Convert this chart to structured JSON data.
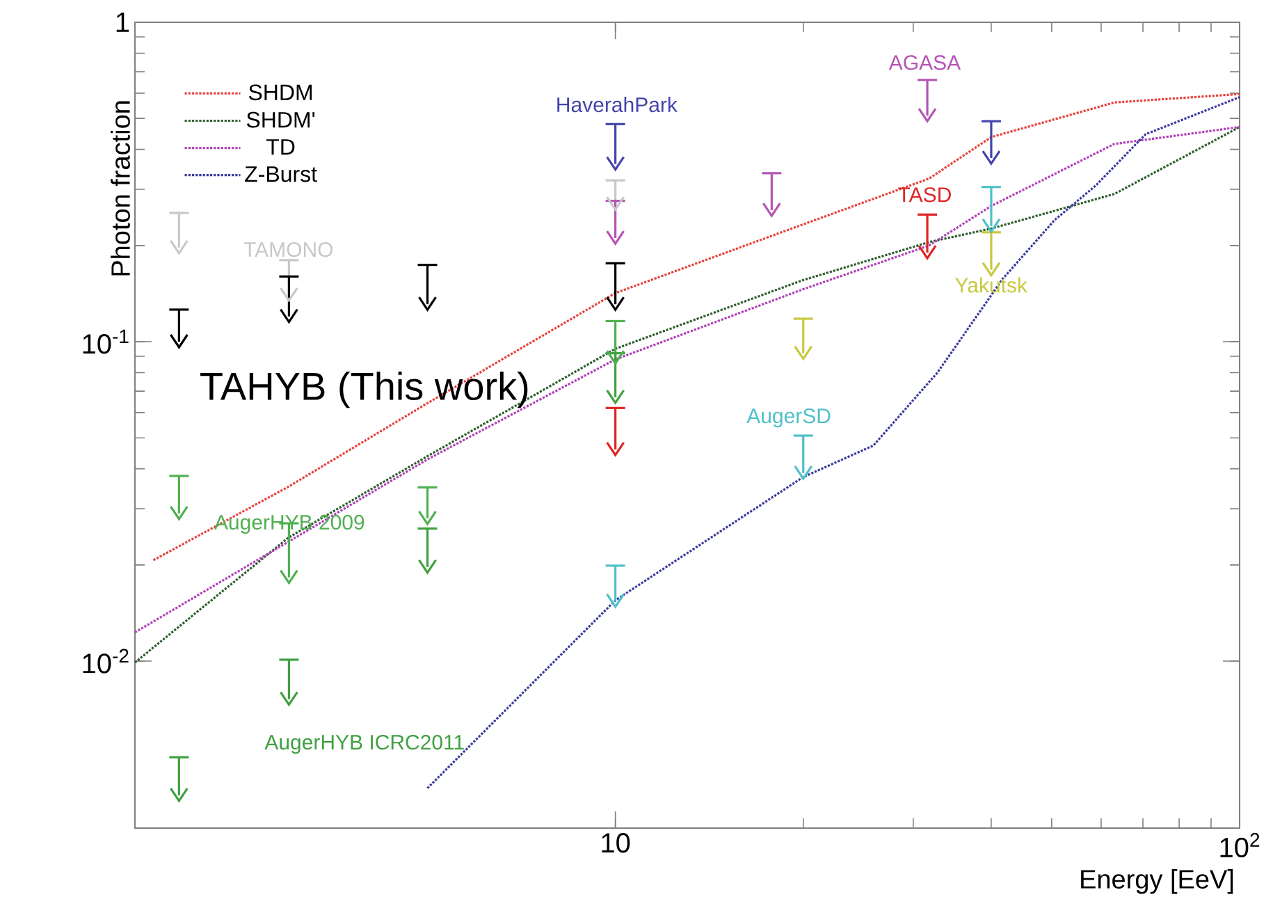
{
  "chart_data": {
    "type": "line",
    "xlabel": "Energy [EeV]",
    "ylabel": "Photon fraction",
    "log": "xy",
    "line_style": "dotted",
    "legend": "top left",
    "xlim": [
      1.7,
      100
    ],
    "ylim": [
      0.003,
      1
    ],
    "xticks": [
      10,
      {
        "value": 100,
        "label": "10$^{2}$"
      }
    ],
    "yticks": [
      {
        "value": 0.01,
        "label": "10$^{-2}$"
      },
      {
        "value": 0.1,
        "label": "10$^{-1}$"
      },
      1
    ],
    "series": [
      {
        "name": "SHDM",
        "color": "#e8423a",
        "x": [
          1.82,
          2.99,
          5.02,
          10,
          20,
          31.8,
          40,
          63,
          100
        ],
        "values": [
          0.0207,
          0.0351,
          0.0645,
          0.142,
          0.233,
          0.324,
          0.437,
          0.561,
          0.596
        ]
      },
      {
        "name": "SHDM'",
        "color": "#2e5e2e",
        "x": [
          1.7,
          2.99,
          5.02,
          10,
          20,
          31.8,
          40,
          63,
          100
        ],
        "values": [
          0.0099,
          0.0243,
          0.044,
          0.095,
          0.156,
          0.205,
          0.226,
          0.29,
          0.47
        ]
      },
      {
        "name": "TD",
        "color": "#b040b8",
        "x": [
          1.7,
          2.99,
          5.02,
          10,
          20,
          31.8,
          40,
          63,
          100
        ],
        "values": [
          0.0123,
          0.0236,
          0.043,
          0.088,
          0.146,
          0.2,
          0.266,
          0.416,
          0.47
        ]
      },
      {
        "name": "Z-Burst",
        "color": "#3a3aa0",
        "x": [
          5,
          10,
          20,
          25.9,
          32.8,
          41.7,
          50.5,
          58.8,
          70.7,
          100
        ],
        "values": [
          0.004,
          0.0155,
          0.0377,
          0.0473,
          0.08,
          0.157,
          0.24,
          0.308,
          0.446,
          0.583
        ]
      },
      {
        "type": "scatter",
        "name": "TAMONO",
        "color": "#c8c8c8",
        "x": [
          2,
          3,
          5,
          10
        ],
        "values": [
          0.197,
          0.14,
          null,
          0.27
        ],
        "errors": [
          [
            0.197,
            0.253
          ],
          [
            0.14,
            0.18
          ],
          null,
          [
            0.27,
            0.32
          ]
        ]
      },
      {
        "type": "scatter",
        "name": "TAHYB (This work)",
        "color": "#000000",
        "x": [
          2,
          3,
          5,
          10
        ],
        "values": [
          0.1,
          0.12,
          0.131,
          0.131
        ],
        "errors": [
          [
            0.1,
            0.126
          ],
          [
            0.12,
            0.16
          ],
          [
            0.131,
            0.174
          ],
          [
            0.131,
            0.176
          ]
        ]
      },
      {
        "type": "scatter",
        "name": "HaverahPark",
        "color": "#4444aa",
        "x": [
          10,
          40
        ],
        "values": [
          0.36,
          0.376
        ],
        "errors": [
          [
            0.36,
            0.48
          ],
          [
            0.376,
            0.49
          ]
        ]
      },
      {
        "type": "scatter",
        "name": "AGASA",
        "color": "#b455b4",
        "x": [
          10,
          17.8,
          31.6
        ],
        "values": [
          0.211,
          0.258,
          0.51
        ],
        "errors": [
          [
            0.211,
            0.276
          ],
          [
            0.258,
            0.337
          ],
          [
            0.51,
            0.66
          ]
        ]
      },
      {
        "type": "scatter",
        "name": "TASD",
        "color": "#e02424",
        "x": [
          10,
          31.6
        ],
        "values": [
          0.046,
          0.19
        ],
        "errors": [
          [
            0.046,
            0.062
          ],
          [
            0.19,
            0.25
          ]
        ]
      },
      {
        "type": "scatter",
        "name": "Yakutsk",
        "color": "#c8c840",
        "x": [
          20,
          40
        ],
        "values": [
          0.092,
          0.168
        ],
        "errors": [
          [
            0.092,
            0.118
          ],
          [
            0.168,
            0.22
          ]
        ]
      },
      {
        "type": "scatter",
        "name": "AugerSD",
        "color": "#50c0c8",
        "x": [
          10,
          20,
          40
        ],
        "values": [
          0.0154,
          0.0388,
          0.23
        ],
        "errors": [
          [
            0.0154,
            0.0199
          ],
          [
            0.0388,
            0.0508
          ],
          [
            0.23,
            0.305
          ]
        ]
      },
      {
        "type": "scatter",
        "name": "AugerHYB 2009",
        "color": "#50b050",
        "x": [
          2,
          3,
          5,
          10
        ],
        "values": [
          0.029,
          0.0183,
          0.028,
          0.089
        ],
        "errors": [
          [
            0.029,
            0.038
          ],
          [
            0.0183,
            0.027
          ],
          [
            0.028,
            0.035
          ],
          [
            0.089,
            0.116
          ]
        ]
      },
      {
        "type": "scatter",
        "name": "AugerHYB ICRC2011",
        "color": "#40a040",
        "x": [
          2,
          3,
          5,
          10
        ],
        "values": [
          0.0038,
          0.0076,
          0.0197,
          0.067
        ],
        "errors": [
          [
            0.0038,
            0.005
          ],
          [
            0.0076,
            0.0101
          ],
          [
            0.0197,
            0.026
          ],
          [
            0.067,
            0.092
          ]
        ]
      }
    ]
  }
}
